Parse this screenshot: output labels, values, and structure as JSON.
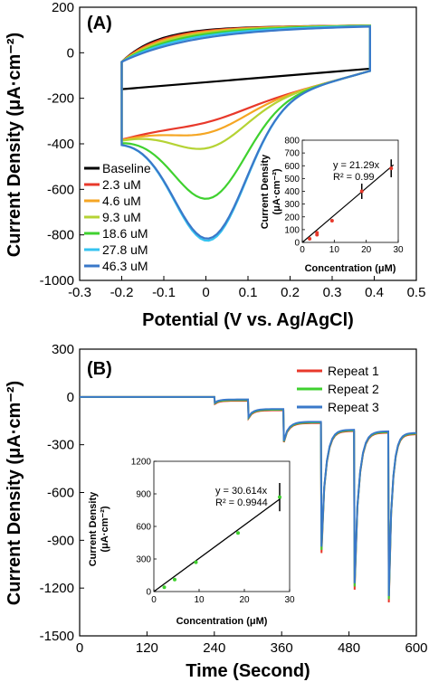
{
  "chart_data": [
    {
      "id": "A",
      "type": "line",
      "panel_label": "(A)",
      "xlabel": "Potential (V vs. Ag/AgCl)",
      "ylabel": "Current Density (μA·cm⁻²)",
      "xlim": [
        -0.3,
        0.5
      ],
      "ylim": [
        -1000,
        200
      ],
      "xticks": [
        "-0.3",
        "-0.2",
        "-0.1",
        "0",
        "0.1",
        "0.2",
        "0.3",
        "0.4",
        "0.5"
      ],
      "yticks": [
        "200",
        "0",
        "-200",
        "-400",
        "-600",
        "-800",
        "-1000"
      ],
      "legend_position": "lower-left",
      "series": [
        {
          "name": "Baseline",
          "color": "#000000",
          "peak_reduction": -110
        },
        {
          "name": "2.3 uM",
          "color": "#e8392b",
          "peak_reduction": -140
        },
        {
          "name": "4.6 uM",
          "color": "#f5a623",
          "peak_reduction": -190
        },
        {
          "name": "9.3 uM",
          "color": "#b5d334",
          "peak_reduction": -260
        },
        {
          "name": "18.6 uM",
          "color": "#3fd12f",
          "peak_reduction": -495
        },
        {
          "name": "27.8 uM",
          "color": "#35c3f0",
          "peak_reduction": -690
        },
        {
          "name": "46.3 uM",
          "color": "#3a78c9",
          "peak_reduction": -680
        }
      ],
      "inset": {
        "type": "scatter",
        "xlabel": "Concentration (μM)",
        "ylabel": "Current Density (μA·cm⁻²)",
        "xlim": [
          0,
          30
        ],
        "ylim": [
          0,
          800
        ],
        "xticks": [
          "0",
          "10",
          "20",
          "30"
        ],
        "yticks": [
          "0",
          "100",
          "200",
          "300",
          "400",
          "500",
          "600",
          "700",
          "800"
        ],
        "equation": "y = 21.29x",
        "r2": "R² = 0.99",
        "slope": 21.29,
        "points": [
          {
            "x": 2.3,
            "y": 28,
            "err": 0
          },
          {
            "x": 4.6,
            "y": 60,
            "err": 0
          },
          {
            "x": 4.6,
            "y": 75,
            "err": 0
          },
          {
            "x": 9.3,
            "y": 170,
            "err": 0
          },
          {
            "x": 18.6,
            "y": 400,
            "err": 60
          },
          {
            "x": 27.8,
            "y": 580,
            "err": 70
          }
        ],
        "point_color": "#e8392b"
      }
    },
    {
      "id": "B",
      "type": "line",
      "panel_label": "(B)",
      "xlabel": "Time (Second)",
      "ylabel": "Current Density (μA·cm⁻²)",
      "xlim": [
        0,
        600
      ],
      "ylim": [
        -1500,
        300
      ],
      "xticks": [
        "0",
        "120",
        "240",
        "360",
        "480",
        "600"
      ],
      "yticks": [
        "300",
        "0",
        "-300",
        "-600",
        "-900",
        "-1200",
        "-1500"
      ],
      "legend_position": "top-right",
      "series": [
        {
          "name": "Repeat 1",
          "color": "#e8392b"
        },
        {
          "name": "Repeat 2",
          "color": "#3fd12f"
        },
        {
          "name": "Repeat 3",
          "color": "#3a78c9"
        }
      ],
      "steps": [
        {
          "t": 0,
          "level": 0,
          "spike": 0
        },
        {
          "t": 240,
          "level": -20,
          "spike": -40
        },
        {
          "t": 300,
          "level": -80,
          "spike": -130
        },
        {
          "t": 363,
          "level": -160,
          "spike": -280
        },
        {
          "t": 430,
          "level": -210,
          "spike": -960
        },
        {
          "t": 489,
          "level": -220,
          "spike": -1190
        },
        {
          "t": 550,
          "level": -230,
          "spike": -1270
        }
      ],
      "inset": {
        "type": "scatter",
        "xlabel": "Concentration (μM)",
        "ylabel": "Current Density (μA·cm⁻²)",
        "xlim": [
          0,
          30
        ],
        "ylim": [
          0,
          1200
        ],
        "xticks": [
          "0",
          "10",
          "20",
          "30"
        ],
        "yticks": [
          "0",
          "300",
          "600",
          "900",
          "1200"
        ],
        "equation": "y = 30.614x",
        "r2": "R² = 0.9944",
        "slope": 30.614,
        "points": [
          {
            "x": 2.3,
            "y": 40,
            "err": 0
          },
          {
            "x": 4.6,
            "y": 110,
            "err": 0
          },
          {
            "x": 9.3,
            "y": 270,
            "err": 0
          },
          {
            "x": 18.6,
            "y": 540,
            "err": 0
          },
          {
            "x": 27.8,
            "y": 870,
            "err": 130
          }
        ],
        "point_color": "#3fd12f"
      }
    }
  ]
}
